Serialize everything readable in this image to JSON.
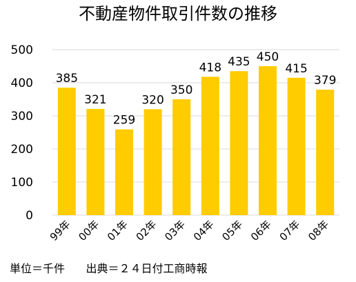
{
  "chart_data": {
    "type": "bar",
    "title": "不動産物件取引件数の推移",
    "categories": [
      "99年",
      "00年",
      "01年",
      "02年",
      "03年",
      "04年",
      "05年",
      "06年",
      "07年",
      "08年"
    ],
    "values": [
      385,
      321,
      259,
      320,
      350,
      418,
      435,
      450,
      415,
      379
    ],
    "ylim": [
      0,
      500
    ],
    "yticks": [
      0,
      100,
      200,
      300,
      400,
      500
    ],
    "grid": true,
    "data_labels": true,
    "bar_color": "#FFCC00",
    "grid_color": "#d9d9d9"
  },
  "footer": {
    "unit": "単位＝千件",
    "source": "出典＝２４日付工商時報"
  }
}
